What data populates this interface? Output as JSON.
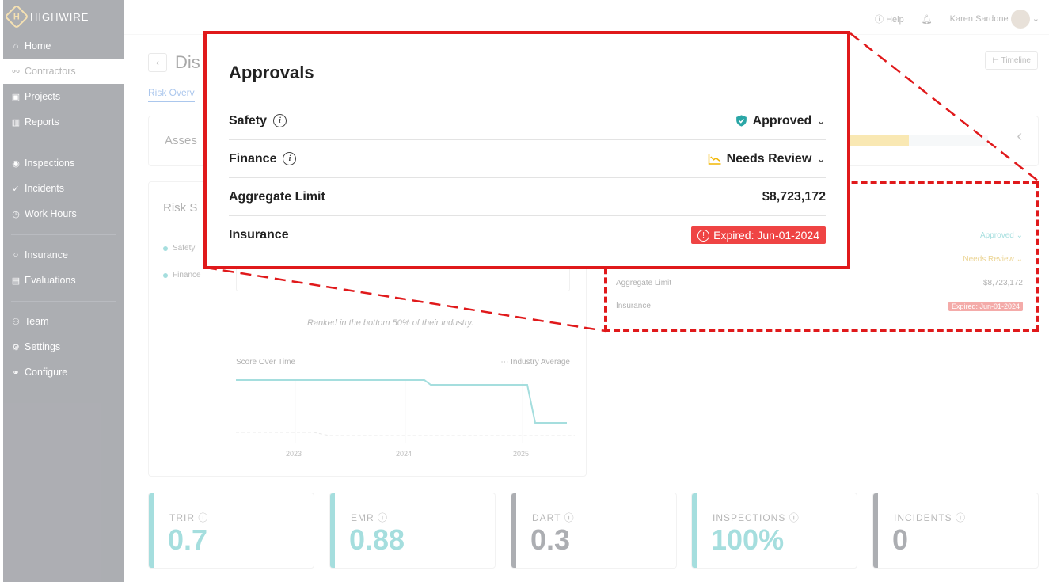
{
  "app": {
    "brand": "HIGHWIRE",
    "brand_initial": "H"
  },
  "sidebar": {
    "items": [
      {
        "label": "Home",
        "icon": "home-icon",
        "glyph": "⌂"
      },
      {
        "label": "Contractors",
        "icon": "handshake-icon",
        "glyph": "⚯"
      },
      {
        "label": "Projects",
        "icon": "briefcase-icon",
        "glyph": "▣"
      },
      {
        "label": "Reports",
        "icon": "bar-chart-icon",
        "glyph": "▥"
      },
      {
        "label": "Inspections",
        "icon": "eye-icon",
        "glyph": "◉"
      },
      {
        "label": "Incidents",
        "icon": "check-icon",
        "glyph": "✓"
      },
      {
        "label": "Work Hours",
        "icon": "clock-icon",
        "glyph": "◷"
      },
      {
        "label": "Insurance",
        "icon": "circle-icon",
        "glyph": "○"
      },
      {
        "label": "Evaluations",
        "icon": "clipboard-icon",
        "glyph": "▤"
      },
      {
        "label": "Team",
        "icon": "people-icon",
        "glyph": "⚇"
      },
      {
        "label": "Settings",
        "icon": "gear-icon",
        "glyph": "⚙"
      },
      {
        "label": "Configure",
        "icon": "config-icon",
        "glyph": "⚭"
      }
    ]
  },
  "header": {
    "help": "Help",
    "user_name": "Karen Sardone"
  },
  "page": {
    "title": "Dis",
    "timeline": "Timeline",
    "tab_active": "Risk Overv"
  },
  "assessment": {
    "label": "Asses",
    "progress": 0.5
  },
  "risk": {
    "label": "Risk S",
    "legend": [
      "Safety",
      "Finance"
    ],
    "ranked_text": "Ranked in the bottom 50% of their industry.",
    "score_over_time": "Score Over Time",
    "industry_average": "Industry Average",
    "x_ticks": [
      "2023",
      "2024",
      "2025"
    ]
  },
  "approvals_small": {
    "approved": "Approved",
    "needs_review": "Needs Review",
    "aggregate_limit_label": "Aggregate Limit",
    "aggregate_limit_value": "$8,723,172",
    "insurance_label": "Insurance",
    "insurance_value": "Expired: Jun-01-2024"
  },
  "kpis": [
    {
      "label": "TRIR",
      "value": "0.7",
      "color": "#2bb3b3"
    },
    {
      "label": "EMR",
      "value": "0.88",
      "color": "#2bb3b3"
    },
    {
      "label": "DART",
      "value": "0.3",
      "color": "#3b3f4a"
    },
    {
      "label": "INSPECTIONS",
      "value": "100%",
      "color": "#2bb3b3"
    },
    {
      "label": "INCIDENTS",
      "value": "0",
      "color": "#3b3f4a"
    }
  ],
  "zoom": {
    "title": "Approvals",
    "rows": [
      {
        "label": "Safety",
        "value": "Approved"
      },
      {
        "label": "Finance",
        "value": "Needs Review"
      },
      {
        "label": "Aggregate Limit",
        "value": "$8,723,172"
      },
      {
        "label": "Insurance",
        "value": "Expired: Jun-01-2024"
      }
    ]
  },
  "colors": {
    "accent": "#2bb3b3",
    "danger": "#ef4444",
    "warning": "#f2b705",
    "callout": "#e0191b"
  }
}
